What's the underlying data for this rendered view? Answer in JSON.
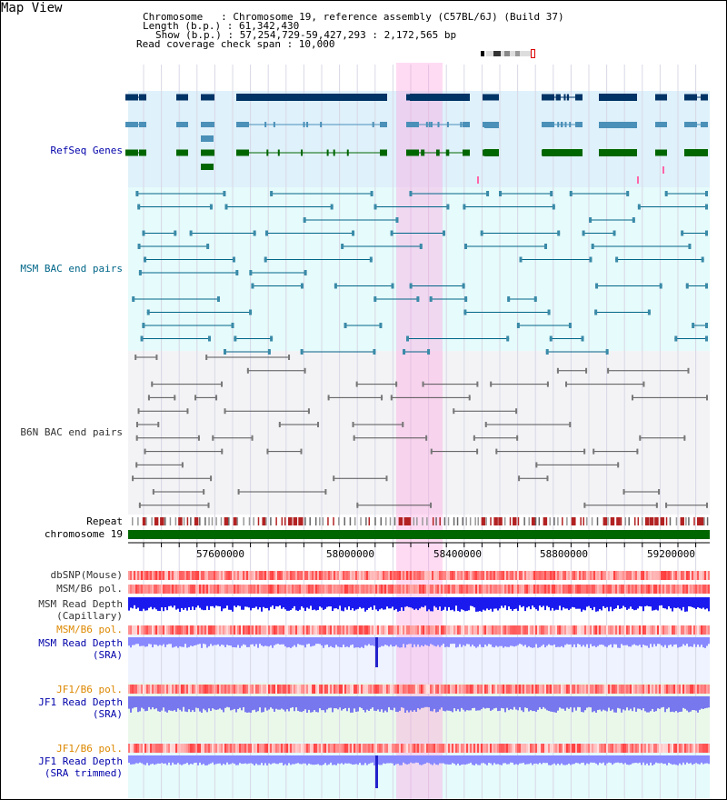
{
  "title": "Map View",
  "info": {
    "line1": "Chromosome   : Chromosome 19, reference assembly (C57BL/6J) (Build 37)",
    "line2": "Length (b.p.) : 61,342,430",
    "line3": "Show (b.p.) : 57,254,729-59,427,293 : 2,172,565 bp",
    "line4": "Read coverage check span : 10,000"
  },
  "tracks": {
    "refseq": {
      "label": "RefSeq Genes",
      "color": "#0000aa"
    },
    "msm_bac": {
      "label": "MSM BAC end pairs",
      "color": "#006688"
    },
    "b6n_bac": {
      "label": "B6N BAC end pairs",
      "color": "#333333"
    },
    "repeat": {
      "label": "Repeat"
    },
    "chromosome": {
      "label": "chromosome 19"
    },
    "dbsnp": {
      "label": "dbSNP(Mouse)"
    },
    "msm_b6_pol": {
      "label": "MSM/B6 pol."
    },
    "msm_depth_cap": {
      "line1": "MSM Read Depth",
      "line2": "(Capillary)"
    },
    "msm_b6_pol2": {
      "label": "MSM/B6 pol.",
      "color": "#dd8800"
    },
    "msm_depth_sra": {
      "line1": "MSM Read Depth",
      "line2": "(SRA)",
      "color": "#0000aa"
    },
    "jf1_b6_pol": {
      "label": "JF1/B6 pol.",
      "color": "#dd8800"
    },
    "jf1_depth_sra": {
      "line1": "JF1 Read Depth",
      "line2": "(SRA)",
      "color": "#0000aa"
    },
    "jf1_b6_pol2": {
      "label": "JF1/B6 pol.",
      "color": "#dd8800"
    },
    "jf1_depth_trim": {
      "line1": "JF1 Read Depth",
      "line2": "(SRA trimmed)",
      "color": "#0000aa"
    }
  },
  "axis": {
    "ticks": [
      "57600000",
      "58000000",
      "58400000",
      "58800000",
      "59200000"
    ]
  }
}
